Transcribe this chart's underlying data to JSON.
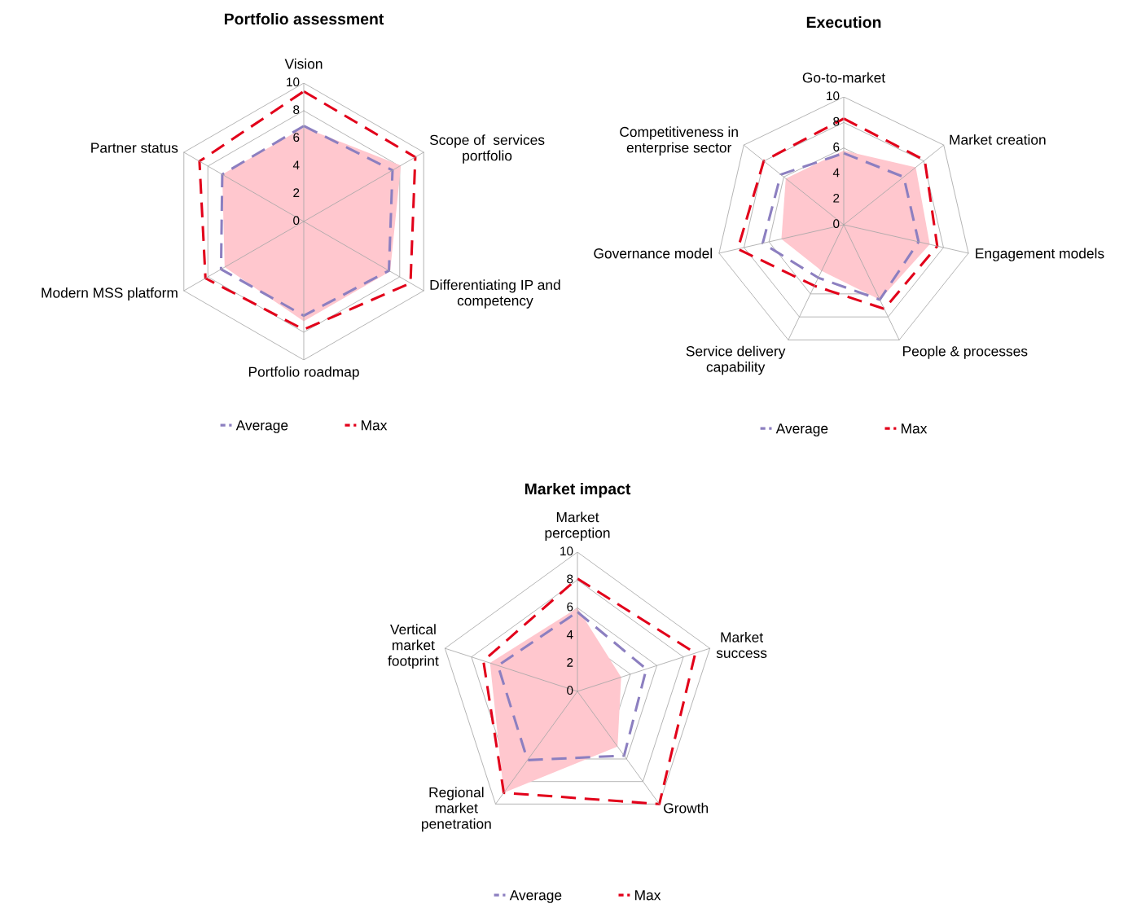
{
  "chart_data": [
    {
      "type": "radar",
      "title": "Portfolio assessment",
      "categories": [
        "Vision",
        "Scope of  services\nportfolio",
        "Differentiating IP and\ncompetency",
        "Portfolio roadmap",
        "Modern MSS platform",
        "Partner status"
      ],
      "ylim": [
        0,
        10
      ],
      "yticks": [
        0,
        2,
        4,
        6,
        8,
        10
      ],
      "grid": true,
      "legend": "bottom",
      "line_style": "dashed",
      "series": [
        {
          "type": "area",
          "color": "#ffc7ce",
          "values": [
            6.8,
            8.1,
            7.2,
            7.2,
            6.6,
            6.8
          ]
        },
        {
          "name": "Average",
          "color": "#8c7fc0",
          "values": [
            6.9,
            7.4,
            7.1,
            6.8,
            6.9,
            6.8
          ]
        },
        {
          "name": "Max",
          "color": "#e2001a",
          "values": [
            9.4,
            9.3,
            8.9,
            7.8,
            8.2,
            8.7
          ]
        }
      ]
    },
    {
      "type": "radar",
      "title": "Execution",
      "categories": [
        "Go-to-market",
        "Market creation",
        "Engagement models",
        "People & processes",
        "Service delivery\ncapability",
        "Governance model",
        "Competitiveness in\nenterprise sector"
      ],
      "ylim": [
        0,
        10
      ],
      "yticks": [
        0,
        2,
        4,
        6,
        8,
        10
      ],
      "grid": true,
      "legend": "bottom",
      "line_style": "dashed",
      "series": [
        {
          "type": "area",
          "color": "#ffc7ce",
          "values": [
            5.8,
            7.2,
            6.9,
            6.5,
            4.0,
            5.0,
            5.8
          ]
        },
        {
          "name": "Average",
          "color": "#8c7fc0",
          "values": [
            5.6,
            6.0,
            6.0,
            6.5,
            4.6,
            6.5,
            6.3
          ]
        },
        {
          "name": "Max",
          "color": "#e2001a",
          "values": [
            8.3,
            8.1,
            7.5,
            7.3,
            5.3,
            8.5,
            8.0
          ]
        }
      ]
    },
    {
      "type": "radar",
      "title": "Market impact",
      "categories": [
        "Market\nperception",
        "Market\nsuccess",
        "Growth",
        "Regional\nmarket\npenetration",
        "Vertical\nmarket\nfootprint"
      ],
      "ylim": [
        0,
        10
      ],
      "yticks": [
        0,
        2,
        4,
        6,
        8,
        10
      ],
      "grid": true,
      "legend": "bottom",
      "line_style": "dashed",
      "series": [
        {
          "type": "area",
          "color": "#ffc7ce",
          "values": [
            6.0,
            3.3,
            4.9,
            9.0,
            6.6
          ]
        },
        {
          "name": "Average",
          "color": "#8c7fc0",
          "values": [
            5.7,
            5.2,
            5.7,
            6.1,
            6.0
          ]
        },
        {
          "name": "Max",
          "color": "#e2001a",
          "values": [
            8.1,
            8.9,
            10,
            9.0,
            7.1
          ]
        }
      ]
    }
  ]
}
